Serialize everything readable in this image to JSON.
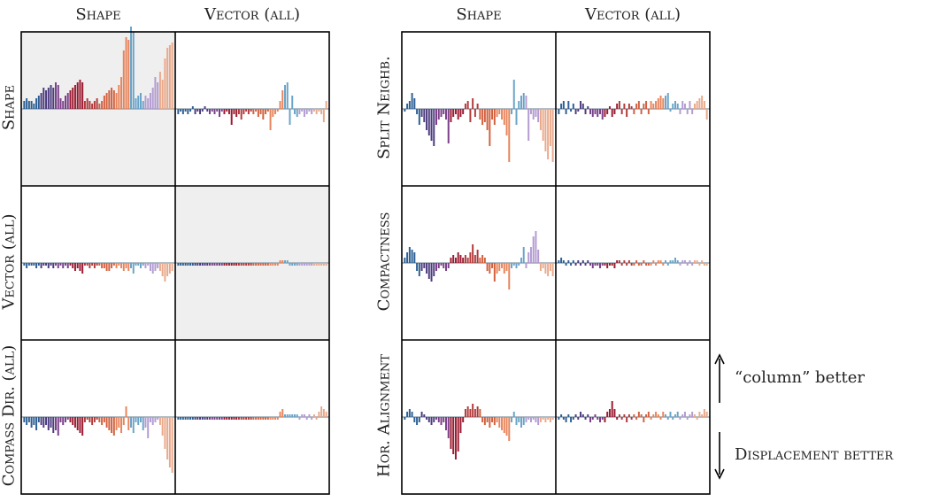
{
  "palette": [
    "#2d5f94",
    "#4c3b7f",
    "#7a3d88",
    "#9a1a30",
    "#b23a3a",
    "#d2603e",
    "#e8845a",
    "#6aa4c8",
    "#b39bd1",
    "#e9a98a"
  ],
  "headers": {
    "left_columns": [
      "Shape",
      "Vector (all)"
    ],
    "right_columns": [
      "Shape",
      "Vector (all)"
    ],
    "left_rows": [
      "Shape",
      "Vector (all)",
      "Compass Dir. (all)"
    ],
    "right_rows": [
      "Split Neighb.",
      "Compactness",
      "Hor. Alignment"
    ]
  },
  "legend": {
    "up_label": "“column” better",
    "down_label": "Displacement better"
  },
  "chart_data": [
    {
      "type": "bar",
      "panel": "left",
      "row": "Shape",
      "col": "Shape",
      "ylim": [
        -1,
        1
      ],
      "highlighted": true,
      "values": [
        0.03,
        0.04,
        0.03,
        0.03,
        0.02,
        0.04,
        0.05,
        0.06,
        0.08,
        0.07,
        0.08,
        0.09,
        0.08,
        0.1,
        0.09,
        0.04,
        0.03,
        0.05,
        0.06,
        0.07,
        0.08,
        0.09,
        0.1,
        0.11,
        0.1,
        0.03,
        0.04,
        0.03,
        0.02,
        0.03,
        0.04,
        0.02,
        0.03,
        0.05,
        0.06,
        0.07,
        0.08,
        0.07,
        0.06,
        0.09,
        0.12,
        0.22,
        0.27,
        0.26,
        0.31,
        0.29,
        0.04,
        0.05,
        0.06,
        0.03,
        0.05,
        0.04,
        0.06,
        0.08,
        0.12,
        0.1,
        0.14,
        0.11,
        0.19,
        0.23,
        0.24,
        0.25
      ]
    },
    {
      "type": "bar",
      "panel": "left",
      "row": "Shape",
      "col": "Vector (all)",
      "ylim": [
        -1,
        1
      ],
      "highlighted": false,
      "values": [
        -0.02,
        -0.01,
        -0.02,
        -0.01,
        -0.02,
        -0.01,
        0.01,
        -0.02,
        -0.01,
        -0.02,
        -0.01,
        0.01,
        -0.01,
        -0.02,
        -0.01,
        -0.02,
        -0.01,
        -0.03,
        -0.01,
        -0.02,
        -0.01,
        -0.02,
        -0.06,
        -0.02,
        -0.03,
        -0.02,
        -0.04,
        -0.02,
        -0.01,
        -0.02,
        -0.01,
        -0.02,
        -0.01,
        -0.03,
        -0.02,
        -0.04,
        -0.02,
        -0.01,
        -0.08,
        -0.03,
        -0.02,
        -0.01,
        0.03,
        0.07,
        0.09,
        0.1,
        -0.06,
        0.05,
        -0.02,
        -0.03,
        -0.02,
        -0.01,
        -0.03,
        -0.02,
        -0.01,
        -0.02,
        -0.01,
        -0.02,
        -0.01,
        -0.02,
        -0.05,
        0.03
      ]
    },
    {
      "type": "bar",
      "panel": "left",
      "row": "Vector (all)",
      "col": "Shape",
      "ylim": [
        -1,
        1
      ],
      "highlighted": false,
      "values": [
        -0.01,
        -0.02,
        -0.01,
        -0.01,
        -0.01,
        -0.02,
        -0.01,
        -0.02,
        -0.01,
        -0.01,
        -0.02,
        -0.01,
        -0.02,
        -0.01,
        -0.02,
        -0.01,
        -0.02,
        -0.01,
        -0.02,
        -0.01,
        -0.02,
        -0.03,
        -0.02,
        -0.03,
        -0.04,
        -0.01,
        -0.01,
        -0.02,
        -0.01,
        -0.02,
        -0.01,
        -0.01,
        -0.02,
        -0.02,
        -0.03,
        -0.03,
        -0.02,
        -0.01,
        -0.02,
        -0.01,
        -0.02,
        -0.03,
        -0.02,
        -0.03,
        -0.02,
        -0.04,
        -0.01,
        -0.01,
        -0.02,
        -0.01,
        -0.02,
        -0.01,
        -0.03,
        -0.04,
        -0.03,
        -0.02,
        -0.03,
        -0.05,
        -0.07,
        -0.05,
        -0.04,
        -0.03
      ]
    },
    {
      "type": "bar",
      "panel": "left",
      "row": "Vector (all)",
      "col": "Vector (all)",
      "ylim": [
        -1,
        1
      ],
      "highlighted": true,
      "values": [
        -0.01,
        -0.01,
        -0.01,
        -0.01,
        -0.01,
        -0.01,
        -0.01,
        -0.01,
        -0.01,
        -0.01,
        -0.01,
        -0.01,
        -0.01,
        -0.01,
        -0.01,
        -0.01,
        -0.01,
        -0.01,
        -0.01,
        -0.01,
        -0.01,
        -0.01,
        -0.01,
        -0.01,
        -0.01,
        -0.01,
        -0.01,
        -0.01,
        -0.01,
        -0.01,
        -0.01,
        -0.01,
        -0.01,
        -0.01,
        -0.01,
        -0.01,
        -0.01,
        -0.01,
        -0.01,
        -0.01,
        -0.01,
        -0.01,
        0.01,
        0.01,
        0.01,
        0.01,
        -0.01,
        -0.01,
        -0.01,
        -0.01,
        -0.01,
        -0.01,
        -0.01,
        -0.01,
        -0.01,
        -0.01,
        -0.01,
        -0.01,
        -0.01,
        -0.01,
        -0.01,
        -0.01
      ]
    },
    {
      "type": "bar",
      "panel": "left",
      "row": "Compass Dir. (all)",
      "col": "Shape",
      "ylim": [
        -1,
        1
      ],
      "highlighted": false,
      "values": [
        -0.02,
        -0.03,
        -0.02,
        -0.04,
        -0.03,
        -0.05,
        -0.02,
        -0.03,
        -0.04,
        -0.03,
        -0.05,
        -0.04,
        -0.06,
        -0.05,
        -0.07,
        -0.02,
        -0.03,
        -0.02,
        -0.01,
        -0.02,
        -0.03,
        -0.04,
        -0.05,
        -0.06,
        -0.07,
        -0.02,
        -0.01,
        -0.02,
        -0.03,
        -0.02,
        -0.01,
        -0.02,
        -0.03,
        -0.02,
        -0.04,
        -0.05,
        -0.06,
        -0.07,
        -0.05,
        -0.04,
        -0.06,
        -0.03,
        0.04,
        -0.05,
        -0.04,
        -0.06,
        -0.02,
        -0.03,
        -0.02,
        -0.05,
        -0.04,
        -0.08,
        -0.02,
        -0.03,
        -0.02,
        -0.01,
        -0.03,
        -0.07,
        -0.12,
        -0.16,
        -0.19,
        -0.21
      ]
    },
    {
      "type": "bar",
      "panel": "left",
      "row": "Compass Dir. (all)",
      "col": "Vector (all)",
      "ylim": [
        -1,
        1
      ],
      "highlighted": false,
      "values": [
        -0.01,
        -0.01,
        -0.01,
        -0.01,
        -0.01,
        -0.01,
        -0.01,
        -0.01,
        -0.01,
        -0.01,
        -0.01,
        -0.01,
        -0.01,
        -0.01,
        -0.01,
        -0.01,
        -0.01,
        -0.01,
        -0.01,
        -0.01,
        -0.01,
        -0.01,
        -0.01,
        -0.01,
        -0.01,
        -0.01,
        -0.01,
        -0.01,
        -0.01,
        -0.01,
        -0.01,
        -0.01,
        -0.01,
        -0.01,
        -0.01,
        -0.01,
        -0.01,
        -0.01,
        -0.01,
        -0.01,
        -0.01,
        -0.01,
        0.02,
        0.03,
        0.01,
        0.01,
        0.01,
        0.01,
        0.01,
        0.01,
        -0.01,
        0.01,
        0.01,
        -0.01,
        0.01,
        -0.01,
        0.01,
        -0.01,
        0.02,
        0.04,
        0.03,
        0.02
      ]
    },
    {
      "type": "bar",
      "panel": "right",
      "row": "Split Neighb.",
      "col": "Shape",
      "ylim": [
        -1,
        1
      ],
      "highlighted": false,
      "values": [
        -0.01,
        0.02,
        0.03,
        0.06,
        0.04,
        -0.02,
        -0.06,
        -0.03,
        -0.05,
        -0.08,
        -0.1,
        -0.12,
        -0.14,
        -0.06,
        -0.04,
        -0.03,
        -0.02,
        -0.04,
        -0.13,
        -0.05,
        -0.03,
        -0.02,
        -0.04,
        -0.03,
        -0.02,
        0.02,
        0.03,
        -0.05,
        0.04,
        -0.03,
        0.02,
        -0.04,
        -0.06,
        -0.05,
        -0.08,
        -0.14,
        -0.04,
        -0.06,
        -0.03,
        -0.02,
        -0.04,
        -0.06,
        -0.1,
        -0.2,
        -0.02,
        0.11,
        -0.06,
        0.03,
        0.05,
        0.06,
        0.05,
        -0.12,
        -0.02,
        -0.04,
        -0.03,
        -0.05,
        -0.08,
        -0.12,
        -0.16,
        -0.19,
        -0.14,
        -0.2
      ]
    },
    {
      "type": "bar",
      "panel": "right",
      "row": "Split Neighb.",
      "col": "Vector (all)",
      "ylim": [
        -1,
        1
      ],
      "highlighted": false,
      "values": [
        -0.02,
        0.02,
        0.03,
        -0.02,
        0.03,
        -0.01,
        0.02,
        -0.02,
        -0.01,
        0.03,
        0.02,
        -0.02,
        0.01,
        -0.02,
        -0.03,
        -0.02,
        -0.03,
        -0.02,
        -0.04,
        -0.03,
        -0.02,
        0.01,
        -0.03,
        -0.02,
        0.02,
        0.03,
        -0.02,
        0.02,
        -0.03,
        0.02,
        0.01,
        -0.02,
        0.02,
        0.03,
        -0.02,
        0.02,
        0.03,
        -0.02,
        0.03,
        0.02,
        0.03,
        0.04,
        0.05,
        0.04,
        0.05,
        0.06,
        -0.01,
        0.02,
        0.03,
        0.02,
        -0.02,
        0.03,
        0.02,
        -0.02,
        0.03,
        -0.02,
        0.02,
        0.03,
        0.04,
        0.05,
        0.03,
        -0.04
      ]
    },
    {
      "type": "bar",
      "panel": "right",
      "row": "Compactness",
      "col": "Shape",
      "ylim": [
        -1,
        1
      ],
      "highlighted": false,
      "values": [
        0.02,
        0.04,
        0.06,
        0.05,
        0.04,
        -0.03,
        -0.05,
        -0.03,
        -0.02,
        -0.04,
        -0.06,
        -0.07,
        -0.05,
        -0.03,
        -0.02,
        -0.01,
        -0.02,
        -0.03,
        -0.02,
        0.02,
        0.03,
        0.02,
        0.04,
        0.03,
        0.02,
        0.03,
        0.02,
        0.04,
        0.07,
        0.03,
        0.05,
        0.02,
        0.03,
        0.02,
        -0.03,
        -0.04,
        -0.02,
        -0.07,
        -0.04,
        -0.03,
        -0.02,
        -0.04,
        -0.03,
        -0.1,
        -0.02,
        -0.01,
        -0.02,
        -0.01,
        0.02,
        0.06,
        -0.02,
        0.04,
        0.06,
        0.1,
        0.12,
        0.05,
        -0.03,
        -0.02,
        -0.04,
        -0.05,
        -0.03,
        -0.05
      ]
    },
    {
      "type": "bar",
      "panel": "right",
      "row": "Compactness",
      "col": "Vector (all)",
      "ylim": [
        -1,
        1
      ],
      "highlighted": false,
      "values": [
        0.01,
        0.02,
        0.01,
        -0.01,
        0.01,
        -0.01,
        0.01,
        -0.01,
        0.01,
        -0.01,
        0.01,
        -0.01,
        0.01,
        -0.01,
        -0.02,
        -0.01,
        -0.01,
        -0.02,
        -0.01,
        -0.01,
        -0.02,
        -0.01,
        -0.01,
        -0.02,
        0.01,
        0.01,
        -0.01,
        0.01,
        -0.01,
        0.01,
        -0.01,
        -0.01,
        0.01,
        -0.01,
        -0.01,
        0.01,
        -0.01,
        -0.01,
        -0.01,
        0.01,
        -0.01,
        0.01,
        0.01,
        -0.01,
        0.01,
        -0.01,
        0.01,
        0.01,
        0.02,
        0.01,
        -0.01,
        0.01,
        0.01,
        -0.01,
        0.01,
        -0.01,
        0.01,
        0.01,
        -0.01,
        0.01,
        -0.01,
        -0.01
      ]
    },
    {
      "type": "bar",
      "panel": "right",
      "row": "Hor. Alignment",
      "col": "Shape",
      "ylim": [
        -1,
        1
      ],
      "highlighted": false,
      "values": [
        -0.01,
        0.02,
        0.03,
        0.02,
        -0.02,
        -0.03,
        -0.02,
        0.02,
        0.01,
        -0.01,
        -0.02,
        -0.03,
        -0.02,
        -0.01,
        -0.02,
        -0.03,
        -0.02,
        -0.05,
        -0.08,
        -0.12,
        -0.14,
        -0.16,
        -0.13,
        -0.06,
        -0.02,
        0.03,
        0.04,
        0.03,
        0.05,
        0.03,
        0.04,
        0.03,
        -0.02,
        -0.03,
        -0.02,
        -0.04,
        -0.02,
        -0.03,
        -0.02,
        -0.04,
        -0.05,
        -0.06,
        -0.07,
        -0.09,
        -0.02,
        0.02,
        -0.03,
        -0.02,
        -0.04,
        -0.03,
        -0.02,
        -0.01,
        -0.02,
        -0.01,
        -0.02,
        -0.03,
        -0.02,
        -0.01,
        -0.02,
        -0.01,
        -0.02,
        -0.01
      ]
    },
    {
      "type": "bar",
      "panel": "right",
      "row": "Hor. Alignment",
      "col": "Vector (all)",
      "ylim": [
        -1,
        1
      ],
      "highlighted": false,
      "values": [
        -0.01,
        0.01,
        -0.01,
        -0.02,
        0.01,
        -0.02,
        -0.01,
        0.01,
        -0.01,
        0.02,
        0.01,
        -0.01,
        0.01,
        -0.02,
        -0.01,
        0.01,
        -0.01,
        -0.02,
        -0.01,
        -0.02,
        0.02,
        0.03,
        0.06,
        0.03,
        -0.01,
        0.01,
        -0.01,
        0.01,
        -0.02,
        0.01,
        -0.01,
        0.01,
        -0.01,
        0.02,
        0.01,
        -0.02,
        0.01,
        0.02,
        -0.01,
        0.01,
        0.02,
        0.01,
        -0.01,
        0.02,
        0.01,
        -0.01,
        0.02,
        -0.01,
        0.01,
        0.02,
        -0.01,
        0.01,
        0.02,
        -0.01,
        0.01,
        0.02,
        0.01,
        -0.01,
        0.02,
        0.01,
        0.03,
        0.02
      ]
    }
  ]
}
